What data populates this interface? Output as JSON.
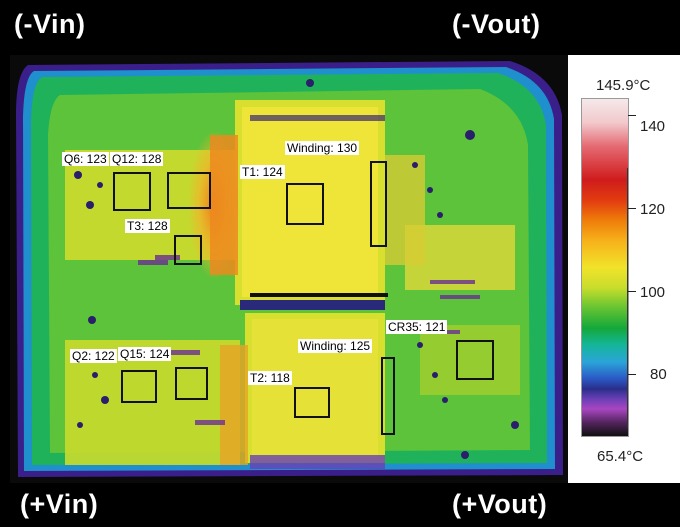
{
  "corners": {
    "top_left": "(-Vin)",
    "top_right": "(-Vout)",
    "bottom_left": "(+Vin)",
    "bottom_right": "(+Vout)"
  },
  "labels": {
    "q6": "Q6: 123",
    "q12": "Q12: 128",
    "t3": "T3: 128",
    "t1": "T1: 124",
    "winding_top": "Winding: 130",
    "q2": "Q2: 122",
    "q15": "Q15: 124",
    "t2": "T2: 118",
    "winding_bottom": "Winding: 125",
    "cr35": "CR35: 121"
  },
  "scale": {
    "max": "145.9°C",
    "min": "65.4°C",
    "ticks": [
      "140",
      "120",
      "100",
      "80"
    ]
  }
}
